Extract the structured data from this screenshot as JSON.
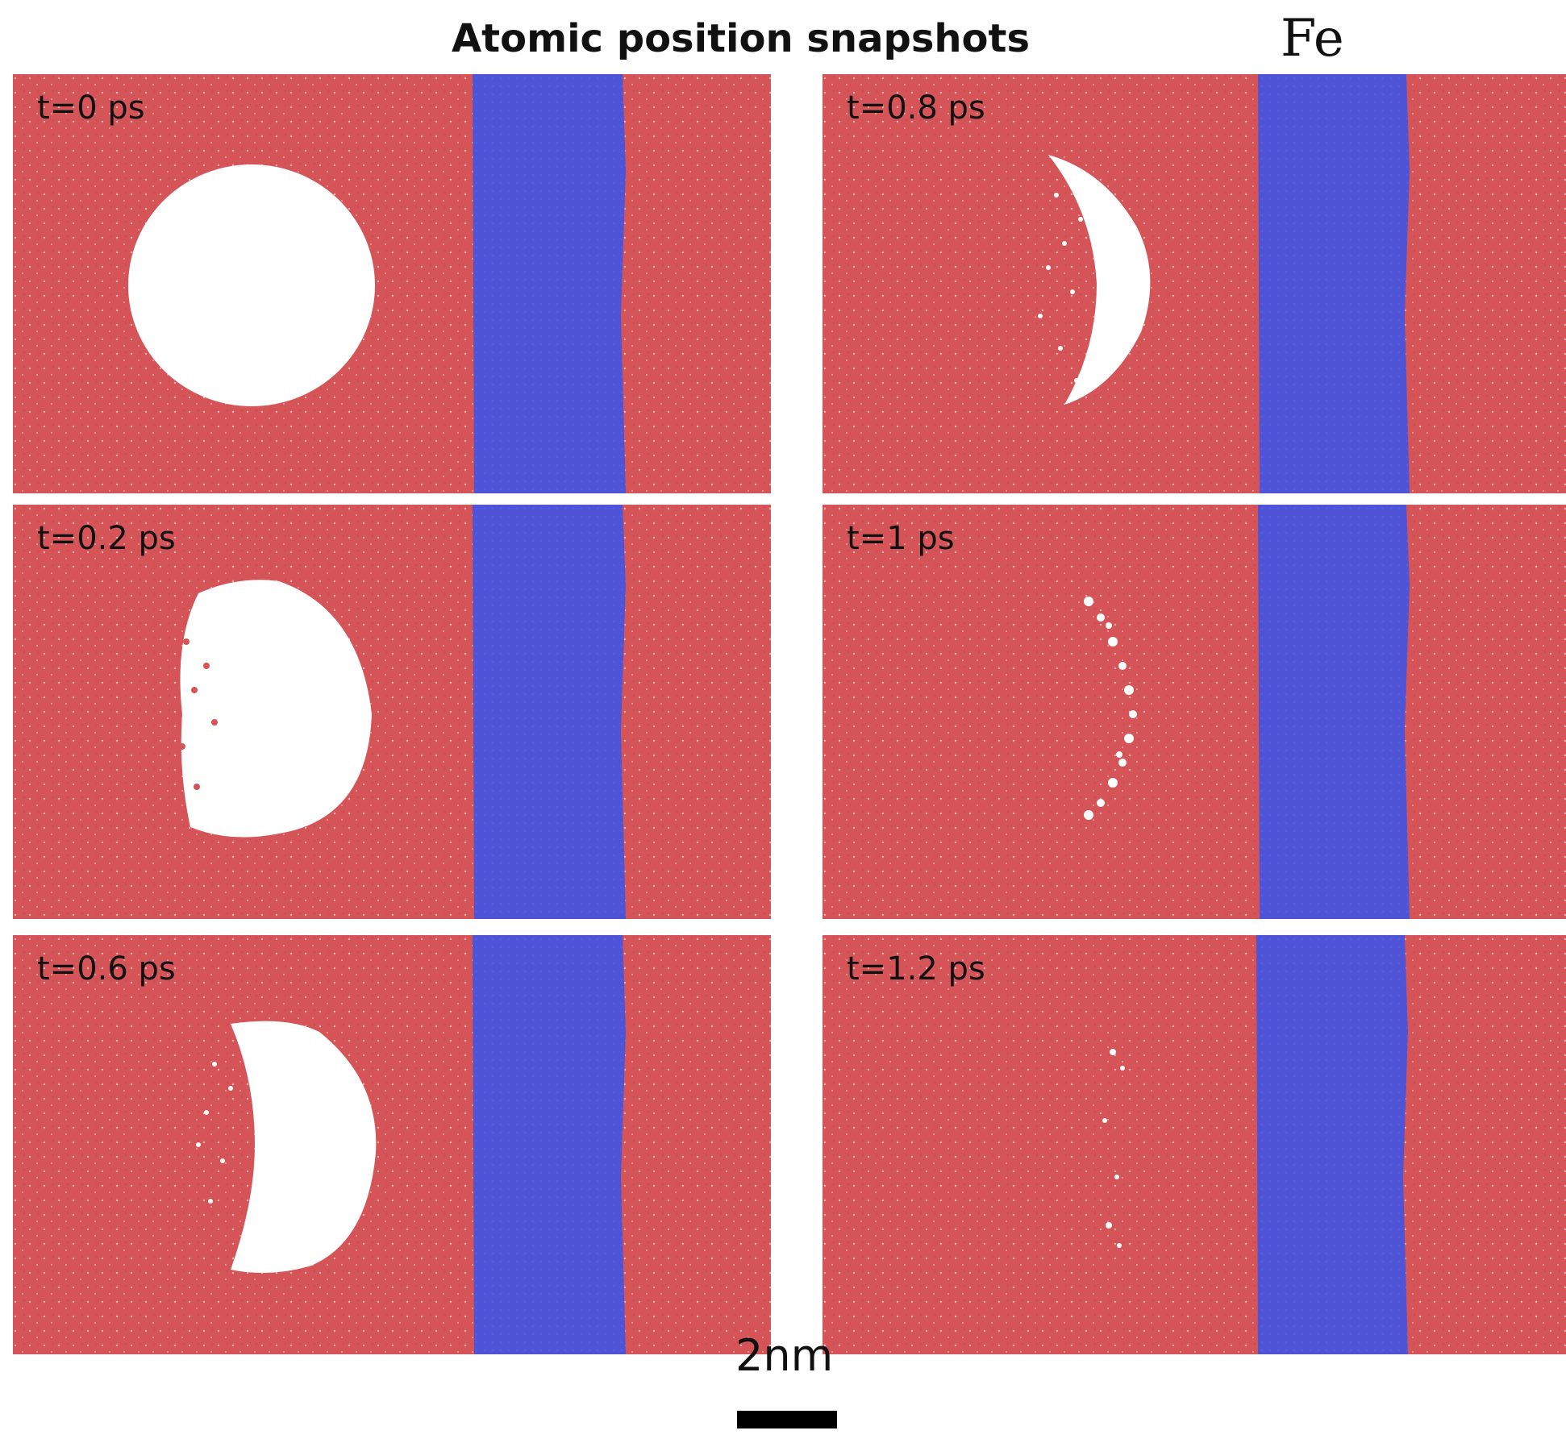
{
  "title": "Atomic position snapshots",
  "element_label": "Fe",
  "colors": {
    "matrix_atoms": "#d55458",
    "interface_band": "#4f53d6",
    "void": "#ffffff"
  },
  "panels": [
    {
      "time_label": "t=0 ps",
      "void_state": "intact sphere"
    },
    {
      "time_label": "t=0.2 ps",
      "void_state": "sphere, left edge filling"
    },
    {
      "time_label": "t=0.6 ps",
      "void_state": "crescent"
    },
    {
      "time_label": "t=0.8 ps",
      "void_state": "thin crescent"
    },
    {
      "time_label": "t=1 ps",
      "void_state": "sparse crescent"
    },
    {
      "time_label": "t=1.2 ps",
      "void_state": "nearly closed"
    }
  ],
  "scale_bar": {
    "label": "2nm"
  }
}
